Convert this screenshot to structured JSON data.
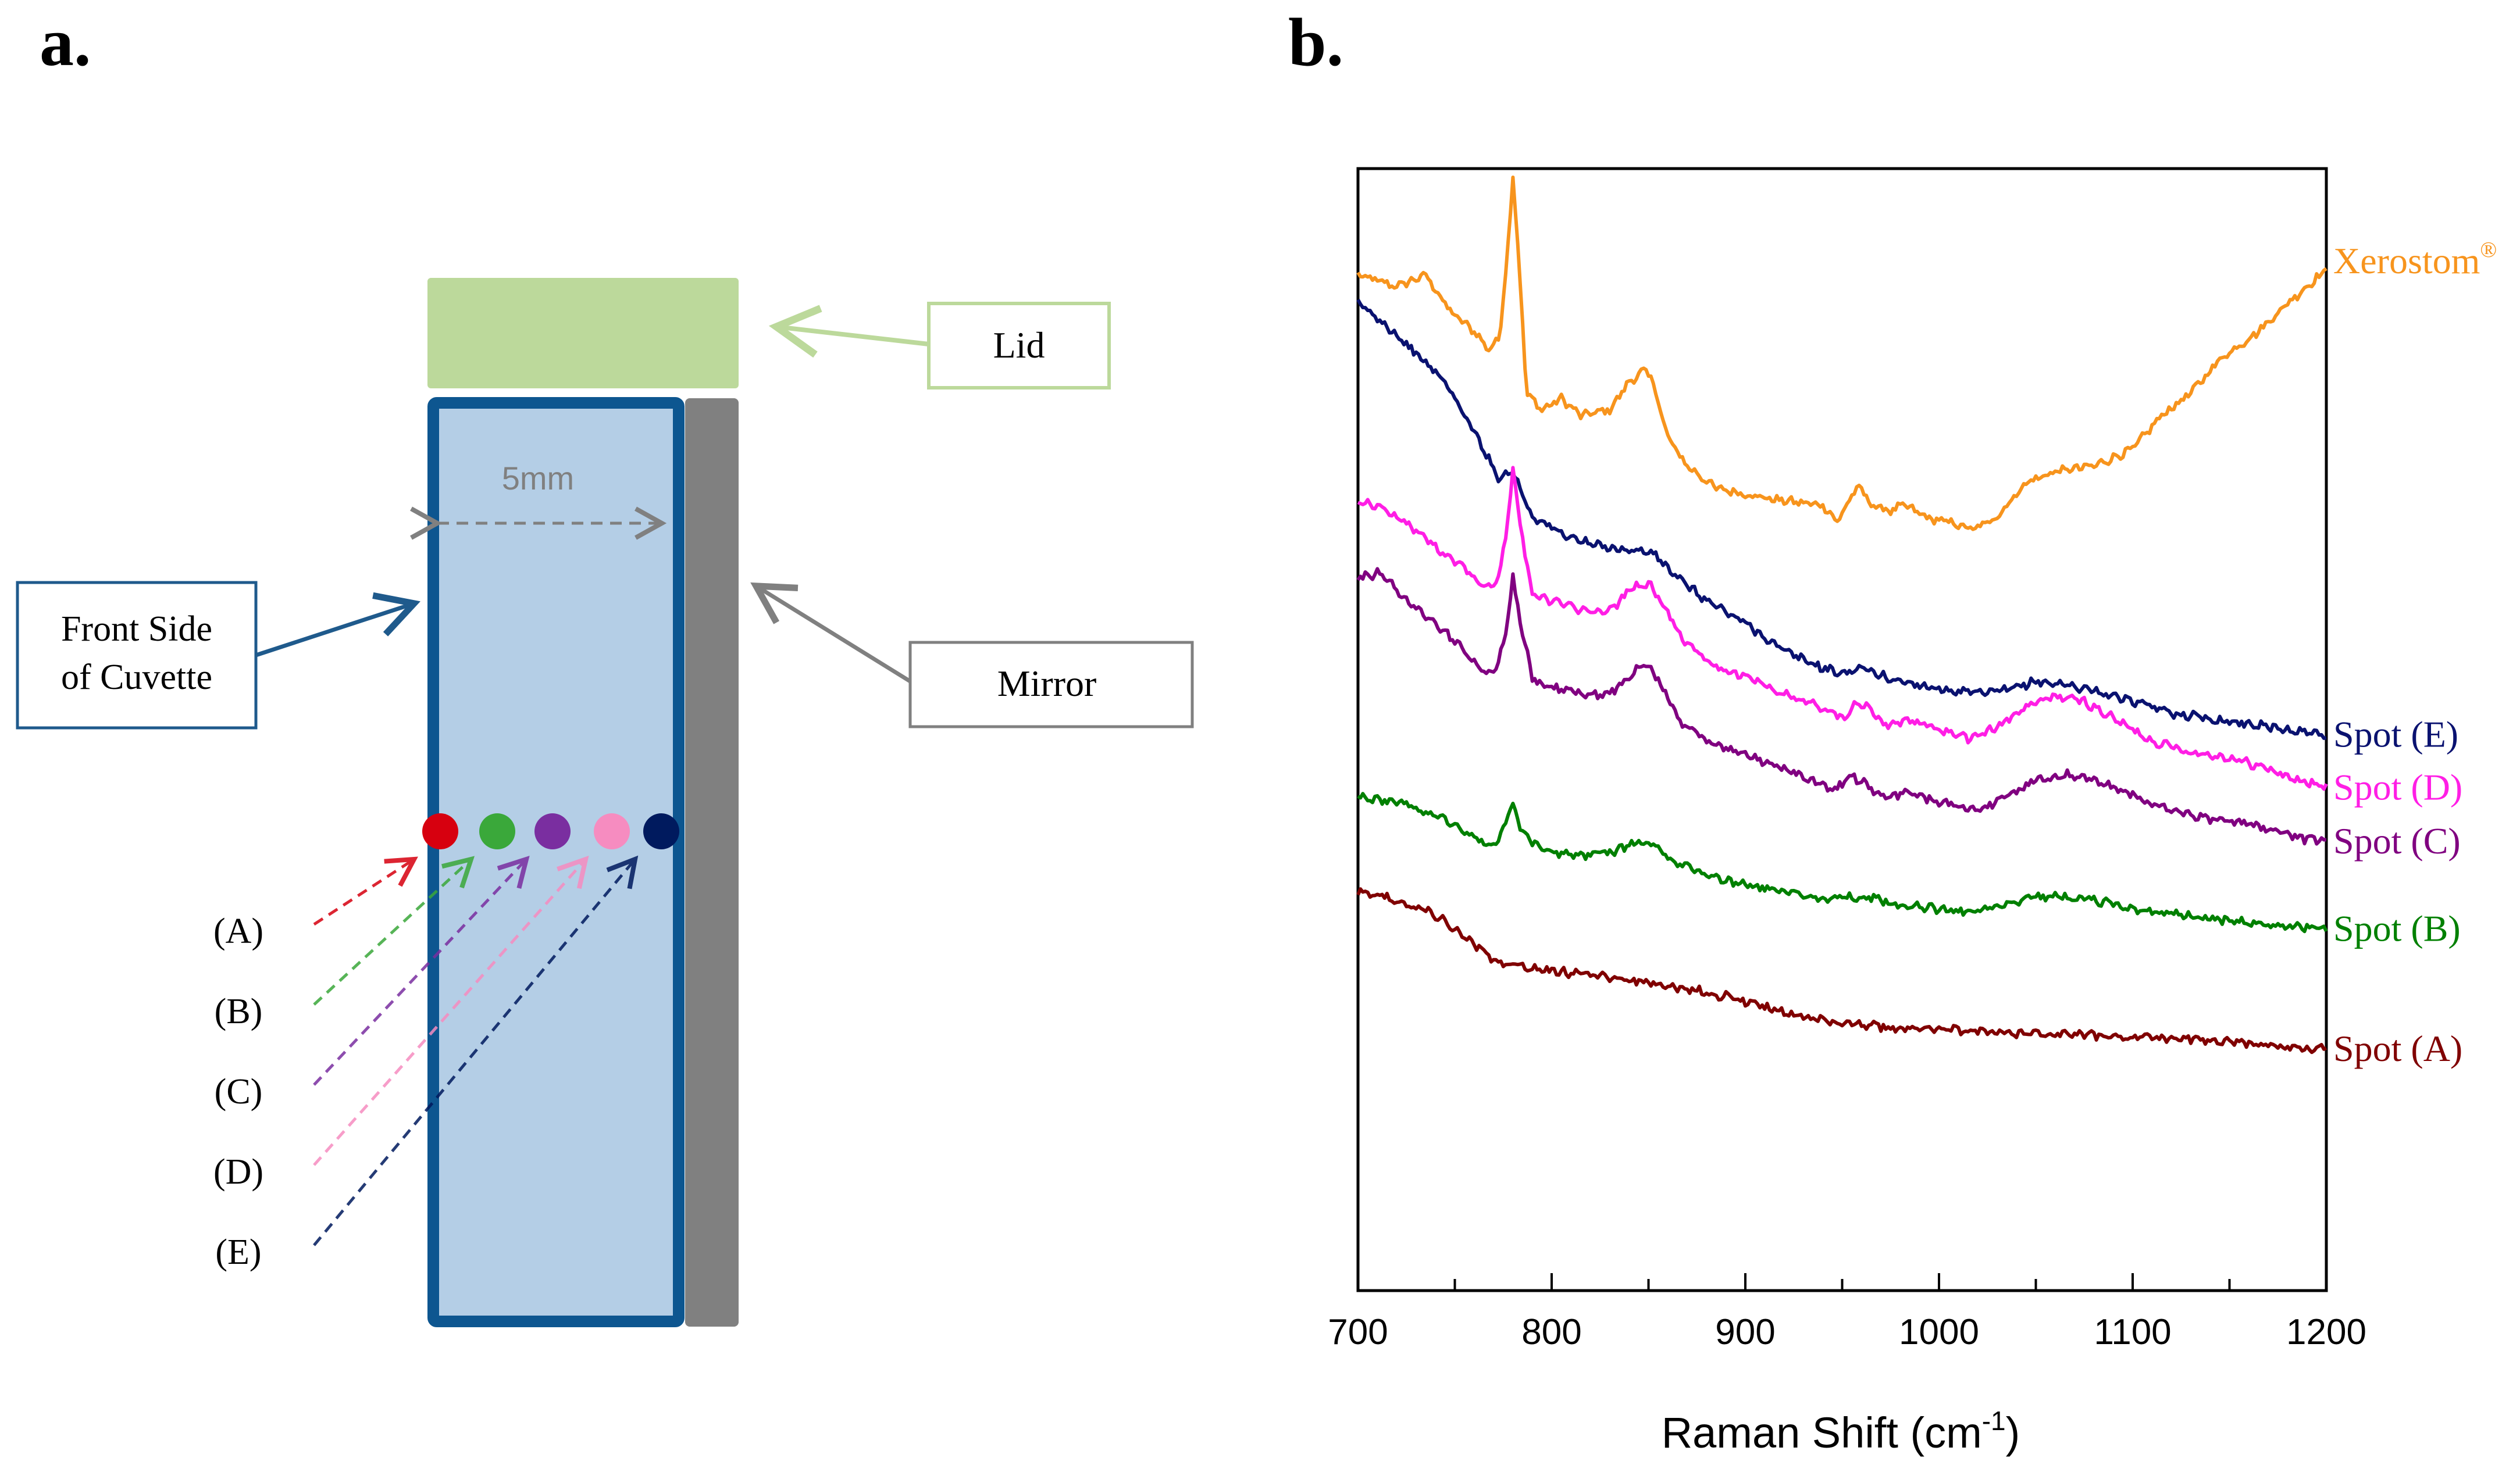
{
  "panel_a": {
    "letter": "a.",
    "lid_label": "Lid",
    "front_label_line1": "Front Side",
    "front_label_line2": "of Cuvette",
    "mirror_label": "Mirror",
    "width_label": "5mm",
    "spots": [
      {
        "label": "(A)",
        "color": "#d7000f"
      },
      {
        "label": "(B)",
        "color": "#3aa83a"
      },
      {
        "label": "(C)",
        "color": "#7a2ea0"
      },
      {
        "label": "(D)",
        "color": "#f68cc0"
      },
      {
        "label": "(E)",
        "color": "#001a5e"
      }
    ],
    "colors": {
      "lid": "#bcd99b",
      "cuvette_fill": "#b4cee6",
      "cuvette_border": "#0d5690",
      "mirror": "#808080"
    }
  },
  "panel_b": {
    "letter": "b."
  },
  "chart_data": {
    "type": "line",
    "xlabel_main": "Raman Shift (cm",
    "xlabel_sup": "-1",
    "xlabel_close": ")",
    "xlim": [
      700,
      1200
    ],
    "xticks": [
      "700",
      "800",
      "900",
      "1000",
      "1100",
      "1200"
    ],
    "grid": false,
    "y_axis_visible_ticks": false,
    "legend": "labels at right end of each series",
    "series": [
      {
        "name": "Xerostom",
        "name_sup": "®",
        "color": "#f7941d",
        "points": [
          [
            700,
            0.905
          ],
          [
            720,
            0.895
          ],
          [
            735,
            0.905
          ],
          [
            748,
            0.872
          ],
          [
            760,
            0.855
          ],
          [
            768,
            0.838
          ],
          [
            773,
            0.85
          ],
          [
            777,
            0.92
          ],
          [
            780,
            0.995
          ],
          [
            783,
            0.92
          ],
          [
            787,
            0.8
          ],
          [
            795,
            0.785
          ],
          [
            805,
            0.795
          ],
          [
            815,
            0.78
          ],
          [
            830,
            0.785
          ],
          [
            840,
            0.81
          ],
          [
            848,
            0.82
          ],
          [
            852,
            0.812
          ],
          [
            860,
            0.76
          ],
          [
            870,
            0.735
          ],
          [
            885,
            0.715
          ],
          [
            900,
            0.71
          ],
          [
            915,
            0.705
          ],
          [
            930,
            0.702
          ],
          [
            940,
            0.7
          ],
          [
            948,
            0.685
          ],
          [
            955,
            0.71
          ],
          [
            960,
            0.715
          ],
          [
            965,
            0.7
          ],
          [
            975,
            0.695
          ],
          [
            982,
            0.7
          ],
          [
            995,
            0.688
          ],
          [
            1005,
            0.685
          ],
          [
            1018,
            0.678
          ],
          [
            1030,
            0.69
          ],
          [
            1045,
            0.72
          ],
          [
            1060,
            0.73
          ],
          [
            1080,
            0.735
          ],
          [
            1100,
            0.75
          ],
          [
            1115,
            0.78
          ],
          [
            1130,
            0.8
          ],
          [
            1145,
            0.83
          ],
          [
            1165,
            0.855
          ],
          [
            1180,
            0.88
          ],
          [
            1200,
            0.91
          ]
        ]
      },
      {
        "name": "Spot (E)",
        "name_sup": "",
        "color": "#0a1270",
        "points": [
          [
            700,
            0.88
          ],
          [
            715,
            0.86
          ],
          [
            730,
            0.835
          ],
          [
            745,
            0.81
          ],
          [
            755,
            0.78
          ],
          [
            765,
            0.75
          ],
          [
            772,
            0.725
          ],
          [
            780,
            0.73
          ],
          [
            790,
            0.69
          ],
          [
            805,
            0.675
          ],
          [
            820,
            0.665
          ],
          [
            840,
            0.66
          ],
          [
            852,
            0.658
          ],
          [
            865,
            0.635
          ],
          [
            880,
            0.615
          ],
          [
            900,
            0.595
          ],
          [
            920,
            0.57
          ],
          [
            940,
            0.555
          ],
          [
            950,
            0.55
          ],
          [
            960,
            0.555
          ],
          [
            975,
            0.545
          ],
          [
            990,
            0.54
          ],
          [
            1005,
            0.535
          ],
          [
            1020,
            0.532
          ],
          [
            1035,
            0.535
          ],
          [
            1050,
            0.543
          ],
          [
            1065,
            0.54
          ],
          [
            1080,
            0.535
          ],
          [
            1100,
            0.525
          ],
          [
            1120,
            0.515
          ],
          [
            1140,
            0.51
          ],
          [
            1160,
            0.505
          ],
          [
            1180,
            0.5
          ],
          [
            1200,
            0.495
          ]
        ]
      },
      {
        "name": "Spot (D)",
        "name_sup": "",
        "color": "#ff1ee5",
        "points": [
          [
            700,
            0.705
          ],
          [
            715,
            0.695
          ],
          [
            728,
            0.68
          ],
          [
            742,
            0.66
          ],
          [
            755,
            0.645
          ],
          [
            765,
            0.628
          ],
          [
            772,
            0.63
          ],
          [
            777,
            0.68
          ],
          [
            780,
            0.735
          ],
          [
            784,
            0.68
          ],
          [
            790,
            0.62
          ],
          [
            800,
            0.615
          ],
          [
            812,
            0.608
          ],
          [
            822,
            0.603
          ],
          [
            832,
            0.608
          ],
          [
            842,
            0.628
          ],
          [
            850,
            0.63
          ],
          [
            858,
            0.61
          ],
          [
            870,
            0.575
          ],
          [
            885,
            0.555
          ],
          [
            900,
            0.548
          ],
          [
            915,
            0.535
          ],
          [
            930,
            0.525
          ],
          [
            940,
            0.52
          ],
          [
            950,
            0.51
          ],
          [
            958,
            0.525
          ],
          [
            964,
            0.52
          ],
          [
            972,
            0.505
          ],
          [
            985,
            0.508
          ],
          [
            1000,
            0.5
          ],
          [
            1015,
            0.492
          ],
          [
            1030,
            0.502
          ],
          [
            1045,
            0.52
          ],
          [
            1060,
            0.53
          ],
          [
            1075,
            0.525
          ],
          [
            1090,
            0.51
          ],
          [
            1110,
            0.49
          ],
          [
            1130,
            0.48
          ],
          [
            1150,
            0.475
          ],
          [
            1170,
            0.465
          ],
          [
            1185,
            0.455
          ],
          [
            1200,
            0.448
          ]
        ]
      },
      {
        "name": "Spot (C)",
        "name_sup": "",
        "color": "#800080",
        "points": [
          [
            700,
            0.635
          ],
          [
            712,
            0.64
          ],
          [
            725,
            0.615
          ],
          [
            740,
            0.595
          ],
          [
            755,
            0.57
          ],
          [
            765,
            0.55
          ],
          [
            772,
            0.555
          ],
          [
            777,
            0.595
          ],
          [
            780,
            0.635
          ],
          [
            784,
            0.595
          ],
          [
            790,
            0.545
          ],
          [
            800,
            0.538
          ],
          [
            815,
            0.532
          ],
          [
            825,
            0.53
          ],
          [
            835,
            0.538
          ],
          [
            848,
            0.56
          ],
          [
            855,
            0.545
          ],
          [
            865,
            0.51
          ],
          [
            880,
            0.49
          ],
          [
            900,
            0.478
          ],
          [
            915,
            0.468
          ],
          [
            930,
            0.458
          ],
          [
            945,
            0.445
          ],
          [
            955,
            0.458
          ],
          [
            962,
            0.452
          ],
          [
            970,
            0.44
          ],
          [
            982,
            0.443
          ],
          [
            995,
            0.438
          ],
          [
            1010,
            0.432
          ],
          [
            1020,
            0.428
          ],
          [
            1035,
            0.44
          ],
          [
            1050,
            0.455
          ],
          [
            1065,
            0.46
          ],
          [
            1080,
            0.455
          ],
          [
            1095,
            0.445
          ],
          [
            1115,
            0.43
          ],
          [
            1135,
            0.422
          ],
          [
            1155,
            0.418
          ],
          [
            1175,
            0.41
          ],
          [
            1190,
            0.402
          ],
          [
            1200,
            0.4
          ]
        ]
      },
      {
        "name": "Spot (B)",
        "name_sup": "",
        "color": "#008000",
        "points": [
          [
            700,
            0.44
          ],
          [
            720,
            0.435
          ],
          [
            740,
            0.425
          ],
          [
            755,
            0.41
          ],
          [
            765,
            0.398
          ],
          [
            772,
            0.4
          ],
          [
            777,
            0.42
          ],
          [
            780,
            0.433
          ],
          [
            784,
            0.41
          ],
          [
            795,
            0.392
          ],
          [
            810,
            0.388
          ],
          [
            830,
            0.39
          ],
          [
            845,
            0.4
          ],
          [
            852,
            0.398
          ],
          [
            865,
            0.38
          ],
          [
            880,
            0.37
          ],
          [
            900,
            0.362
          ],
          [
            920,
            0.355
          ],
          [
            940,
            0.35
          ],
          [
            955,
            0.35
          ],
          [
            962,
            0.352
          ],
          [
            975,
            0.345
          ],
          [
            990,
            0.342
          ],
          [
            1010,
            0.338
          ],
          [
            1025,
            0.34
          ],
          [
            1045,
            0.35
          ],
          [
            1060,
            0.352
          ],
          [
            1080,
            0.348
          ],
          [
            1100,
            0.34
          ],
          [
            1125,
            0.335
          ],
          [
            1150,
            0.33
          ],
          [
            1175,
            0.325
          ],
          [
            1200,
            0.322
          ]
        ]
      },
      {
        "name": "Spot (A)",
        "name_sup": "",
        "color": "#800000",
        "points": [
          [
            700,
            0.355
          ],
          [
            712,
            0.352
          ],
          [
            725,
            0.345
          ],
          [
            740,
            0.335
          ],
          [
            755,
            0.315
          ],
          [
            770,
            0.295
          ],
          [
            785,
            0.288
          ],
          [
            800,
            0.285
          ],
          [
            820,
            0.281
          ],
          [
            840,
            0.277
          ],
          [
            860,
            0.272
          ],
          [
            880,
            0.266
          ],
          [
            900,
            0.258
          ],
          [
            915,
            0.25
          ],
          [
            930,
            0.244
          ],
          [
            950,
            0.238
          ],
          [
            970,
            0.235
          ],
          [
            1000,
            0.233
          ],
          [
            1030,
            0.23
          ],
          [
            1060,
            0.229
          ],
          [
            1090,
            0.227
          ],
          [
            1120,
            0.225
          ],
          [
            1150,
            0.222
          ],
          [
            1175,
            0.218
          ],
          [
            1200,
            0.215
          ]
        ]
      }
    ]
  }
}
